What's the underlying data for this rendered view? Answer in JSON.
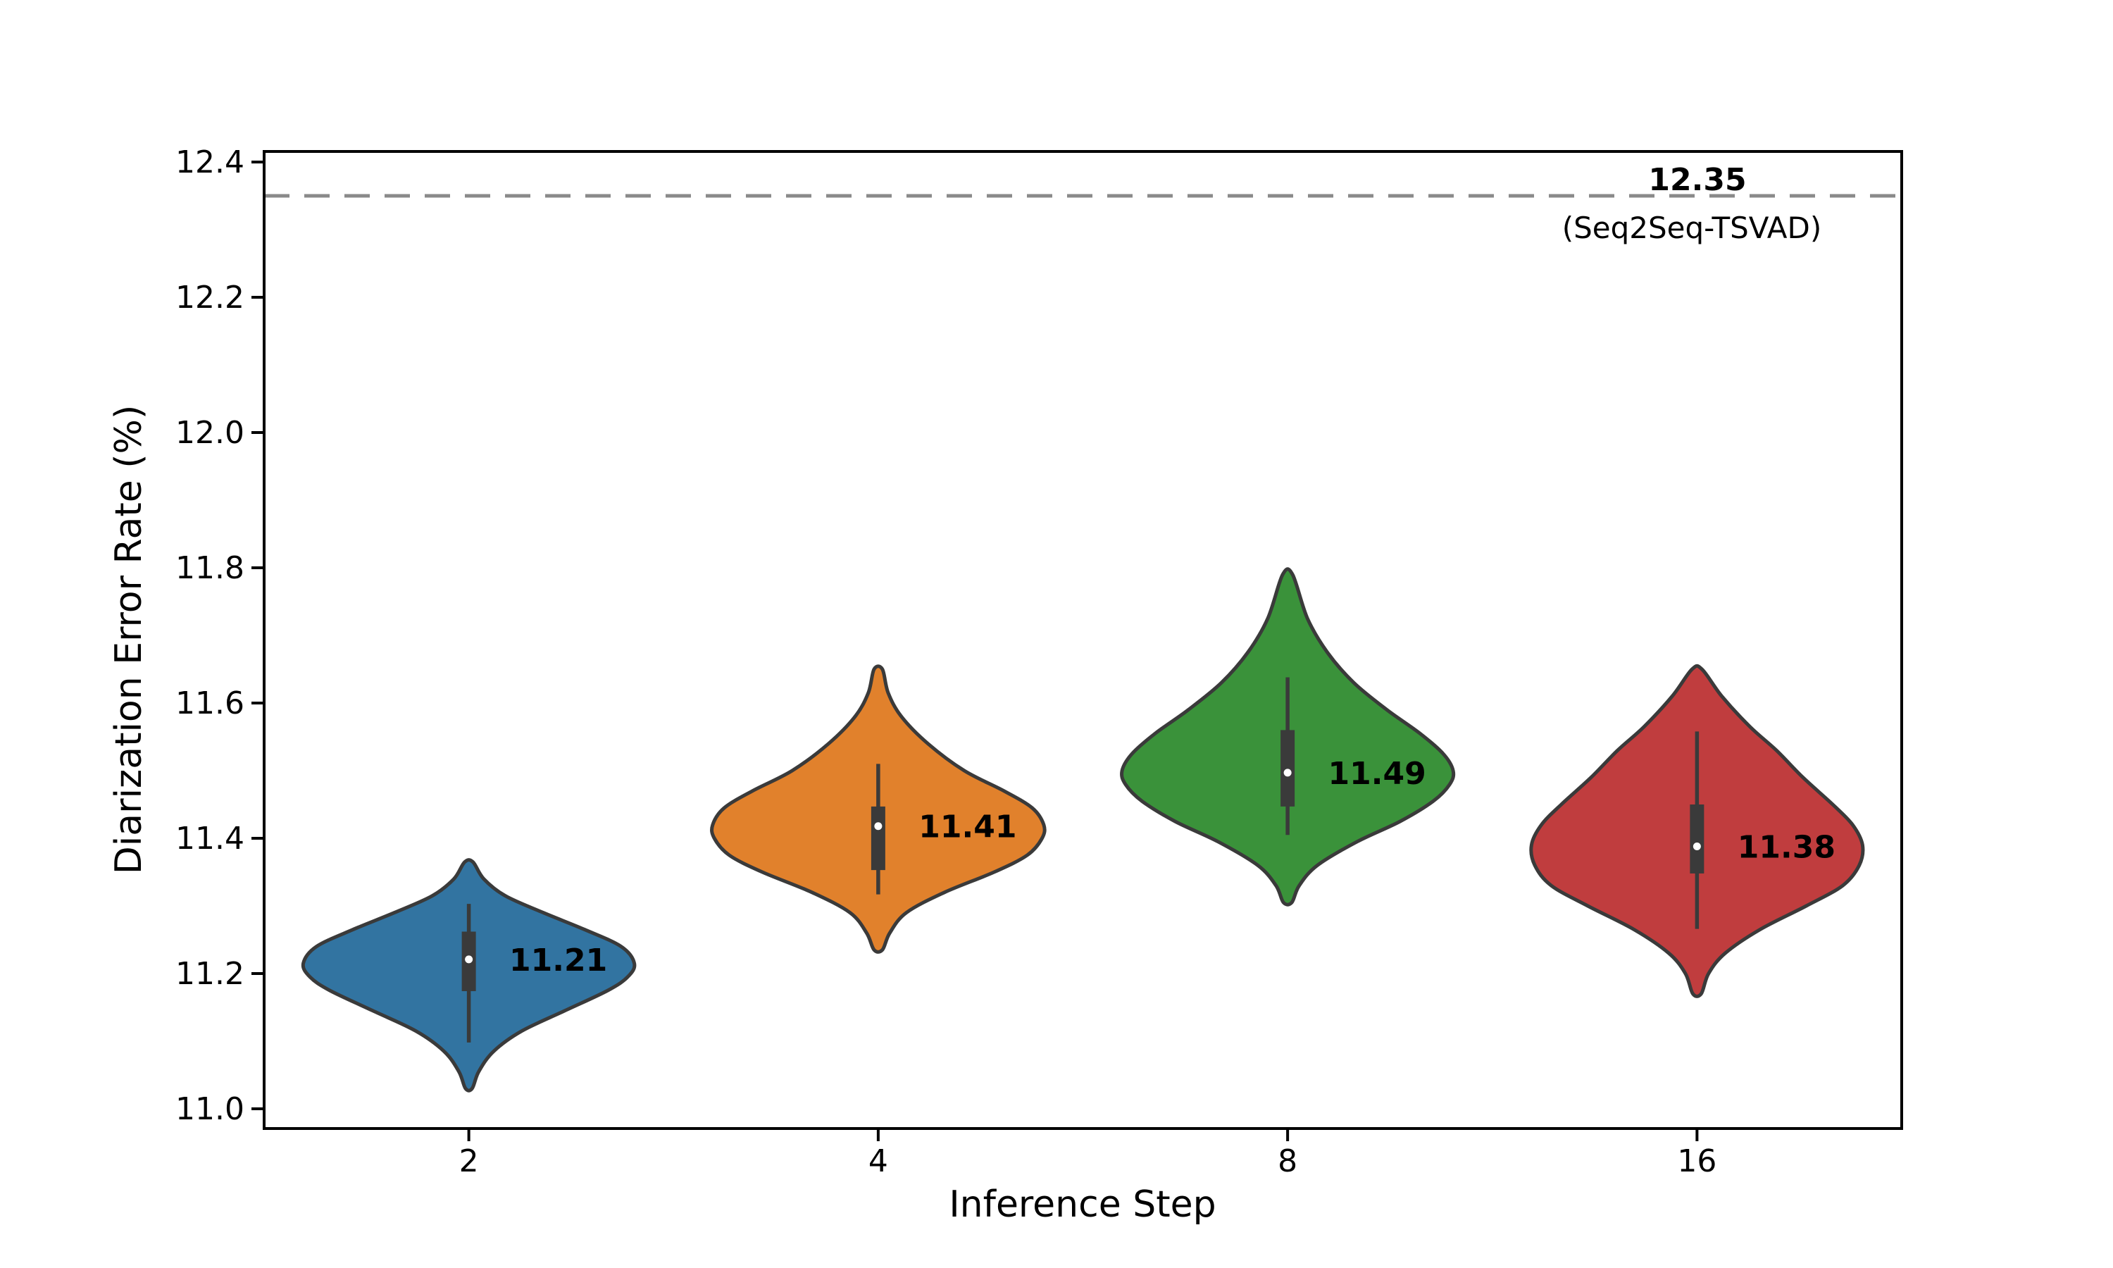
{
  "figure": {
    "background": "#ffffff",
    "frame_color": "#000000",
    "text_color": "#000000"
  },
  "chart_data": {
    "type": "violin",
    "title": "",
    "xlabel": "Inference Step",
    "ylabel": "Diarization Error Rate (%)",
    "categories": [
      "2",
      "4",
      "8",
      "16"
    ],
    "y_ticks": [
      "11.0",
      "11.2",
      "11.4",
      "11.6",
      "11.8",
      "12.0",
      "12.2",
      "12.4"
    ],
    "y_tick_values": [
      11.0,
      11.2,
      11.4,
      11.6,
      11.8,
      12.0,
      12.2,
      12.4
    ],
    "ylim": [
      10.971,
      12.416
    ],
    "grid": "off",
    "legend": "none",
    "reference_line": {
      "value": 12.35,
      "label": "12.35",
      "sublabel": "(Seq2Seq-TSVAD)",
      "color": "#8a8a8a",
      "style": "dashed"
    },
    "inner_style": {
      "box_color": "#3a3a3a",
      "median_dot_color": "#ffffff",
      "edge_color": "#3a3a3a"
    },
    "series": [
      {
        "category": "2",
        "label": "11.21",
        "median": 11.221,
        "q1": 11.174,
        "q3": 11.262,
        "whisker_low": 11.098,
        "whisker_high": 11.303,
        "min": 11.03,
        "max": 11.365,
        "color": "#3274a1",
        "profile": [
          [
            11.03,
            0.02
          ],
          [
            11.055,
            0.06
          ],
          [
            11.085,
            0.15
          ],
          [
            11.115,
            0.32
          ],
          [
            11.145,
            0.58
          ],
          [
            11.175,
            0.84
          ],
          [
            11.195,
            0.96
          ],
          [
            11.215,
            1.0
          ],
          [
            11.24,
            0.92
          ],
          [
            11.265,
            0.7
          ],
          [
            11.29,
            0.45
          ],
          [
            11.315,
            0.22
          ],
          [
            11.34,
            0.09
          ],
          [
            11.365,
            0.025
          ]
        ]
      },
      {
        "category": "4",
        "label": "11.41",
        "median": 11.418,
        "q1": 11.353,
        "q3": 11.447,
        "whisker_low": 11.317,
        "whisker_high": 11.51,
        "min": 11.235,
        "max": 11.65,
        "color": "#e1812c",
        "profile": [
          [
            11.235,
            0.025
          ],
          [
            11.26,
            0.07
          ],
          [
            11.29,
            0.17
          ],
          [
            11.32,
            0.4
          ],
          [
            11.35,
            0.7
          ],
          [
            11.375,
            0.9
          ],
          [
            11.4,
            0.99
          ],
          [
            11.42,
            1.0
          ],
          [
            11.445,
            0.93
          ],
          [
            11.47,
            0.76
          ],
          [
            11.5,
            0.52
          ],
          [
            11.54,
            0.3
          ],
          [
            11.58,
            0.14
          ],
          [
            11.615,
            0.06
          ],
          [
            11.65,
            0.025
          ]
        ]
      },
      {
        "category": "8",
        "label": "11.49",
        "median": 11.497,
        "q1": 11.447,
        "q3": 11.56,
        "whisker_low": 11.405,
        "whisker_high": 11.638,
        "min": 11.305,
        "max": 11.79,
        "color": "#3a923a",
        "profile": [
          [
            11.305,
            0.025
          ],
          [
            11.33,
            0.07
          ],
          [
            11.36,
            0.18
          ],
          [
            11.395,
            0.42
          ],
          [
            11.425,
            0.68
          ],
          [
            11.455,
            0.88
          ],
          [
            11.48,
            0.98
          ],
          [
            11.5,
            1.0
          ],
          [
            11.525,
            0.94
          ],
          [
            11.555,
            0.8
          ],
          [
            11.59,
            0.6
          ],
          [
            11.63,
            0.4
          ],
          [
            11.675,
            0.24
          ],
          [
            11.725,
            0.12
          ],
          [
            11.79,
            0.03
          ]
        ]
      },
      {
        "category": "16",
        "label": "11.38",
        "median": 11.388,
        "q1": 11.348,
        "q3": 11.45,
        "whisker_low": 11.266,
        "whisker_high": 11.558,
        "min": 11.17,
        "max": 11.65,
        "color": "#c03d3e",
        "profile": [
          [
            11.17,
            0.025
          ],
          [
            11.2,
            0.07
          ],
          [
            11.23,
            0.17
          ],
          [
            11.265,
            0.38
          ],
          [
            11.3,
            0.66
          ],
          [
            11.33,
            0.88
          ],
          [
            11.36,
            0.98
          ],
          [
            11.39,
            1.0
          ],
          [
            11.42,
            0.94
          ],
          [
            11.45,
            0.82
          ],
          [
            11.49,
            0.64
          ],
          [
            11.53,
            0.48
          ],
          [
            11.565,
            0.32
          ],
          [
            11.61,
            0.15
          ],
          [
            11.65,
            0.03
          ]
        ]
      }
    ]
  }
}
